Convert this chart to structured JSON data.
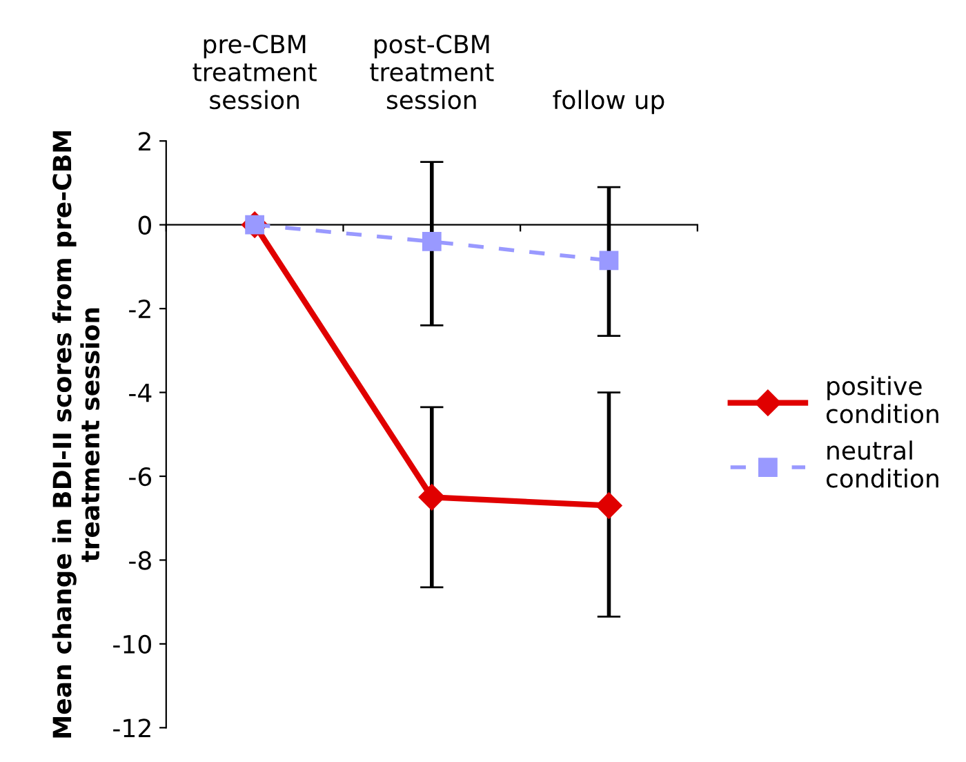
{
  "chart_data": {
    "type": "line",
    "ylabel": "Mean change in BDI-II scores from pre-CBM treatment session",
    "categories": [
      "pre-CBM\ntreatment\nsession",
      "post-CBM\ntreatment\nsession",
      "follow up"
    ],
    "series": [
      {
        "name": "positive\ncondition",
        "color": "#e00000",
        "values": [
          0,
          -6.5,
          -6.7
        ],
        "errors": [
          null,
          [
            -8.65,
            -4.35
          ],
          [
            -9.35,
            -4.0
          ]
        ],
        "marker": "diamond",
        "line_style": "solid"
      },
      {
        "name": "neutral\ncondition",
        "color": "#9999ff",
        "values": [
          0,
          -0.4,
          -0.85
        ],
        "errors": [
          null,
          [
            -2.4,
            1.5
          ],
          [
            -2.65,
            0.9
          ]
        ],
        "marker": "square",
        "line_style": "dashed"
      }
    ],
    "ylim": [
      -12,
      2
    ],
    "yticks": [
      -12,
      -10,
      -8,
      -6,
      -4,
      -2,
      0,
      2
    ],
    "legend": "right"
  }
}
